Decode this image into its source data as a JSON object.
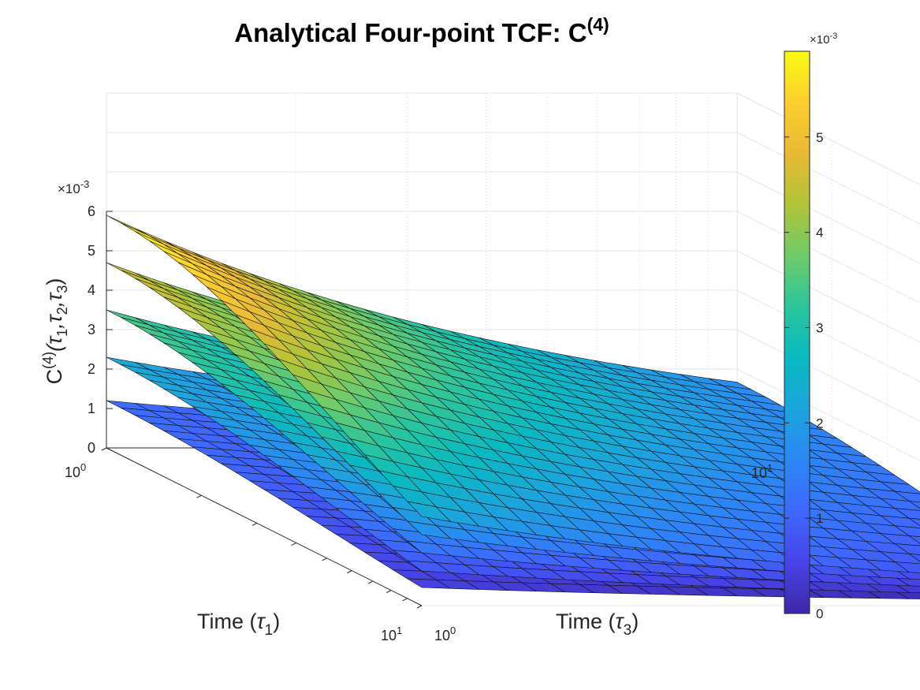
{
  "chart_data": {
    "type": "surface",
    "title": "Analytical Four-point TCF: C",
    "title_superscript": "(4)",
    "xlabel": {
      "main": "Time (",
      "sym": "τ",
      "sub": "1",
      "close": ")"
    },
    "ylabel": {
      "main": "Time (",
      "sym": "τ",
      "sub": "3",
      "close": ")"
    },
    "zlabel": {
      "main": "C",
      "sup": "(4)",
      "args": "(τ",
      "s1": "1",
      "c1": ",τ",
      "s2": "2",
      "c2": ",τ",
      "s3": "3",
      "close": ")"
    },
    "x_scale": "log",
    "y_scale": "log",
    "xlim": [
      1,
      10
    ],
    "ylim": [
      1,
      10
    ],
    "zlim": [
      0,
      0.006
    ],
    "z_ticks": [
      0,
      1,
      2,
      3,
      4,
      5,
      6
    ],
    "z_exponent": "×10",
    "z_exponent_power": "-3",
    "x_tick_labels": {
      "base": "10",
      "start_exp": "0",
      "end_exp": "1"
    },
    "y_tick_labels": {
      "base": "10",
      "start_exp": "0",
      "end_exp": "1"
    },
    "colormap": "parula",
    "colorbar": {
      "min": 0,
      "max": 0.0059,
      "ticks": [
        0,
        1,
        2,
        3,
        4,
        5
      ],
      "exponent": "×10",
      "exponent_power": "-3"
    },
    "grid": true,
    "series": [
      {
        "tau2": 1,
        "c_at_origin": 0.0059,
        "decay_t1": 0.3,
        "decay_t3": 0.55
      },
      {
        "tau2": 2,
        "c_at_origin": 0.0047,
        "decay_t1": 0.3,
        "decay_t3": 0.55
      },
      {
        "tau2": 3,
        "c_at_origin": 0.0035,
        "decay_t1": 0.3,
        "decay_t3": 0.55
      },
      {
        "tau2": 4,
        "c_at_origin": 0.0023,
        "decay_t1": 0.3,
        "decay_t3": 0.55
      },
      {
        "tau2": 5,
        "c_at_origin": 0.0012,
        "decay_t1": 0.3,
        "decay_t3": 0.55
      }
    ],
    "parula_colors": [
      "#3e26a8",
      "#4744e8",
      "#3f67fe",
      "#2c87f5",
      "#1ca4dd",
      "#09b9c0",
      "#2bc59c",
      "#6fcb6a",
      "#b0c437",
      "#e9b935",
      "#fcce2e",
      "#f9fb14"
    ]
  }
}
